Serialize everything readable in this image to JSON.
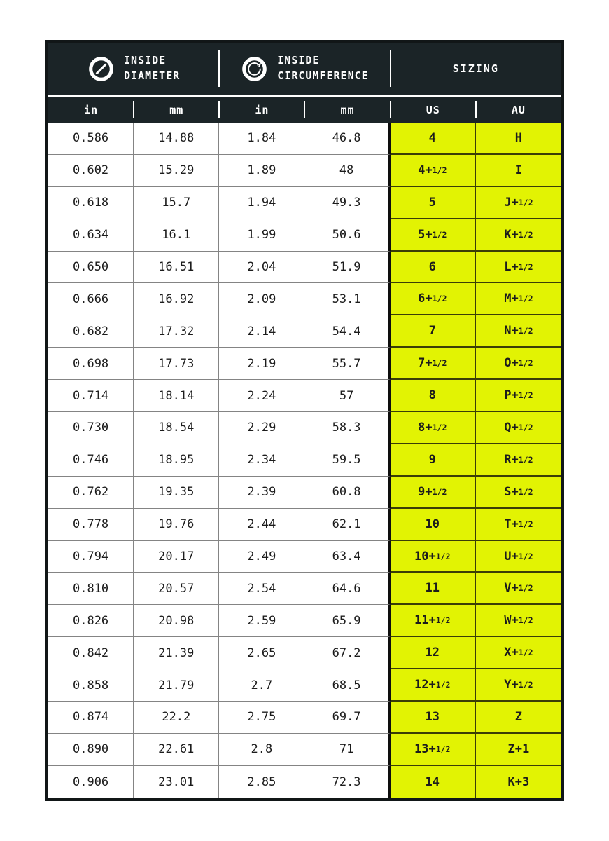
{
  "chart_data": {
    "type": "table",
    "groups": [
      {
        "icon": "diameter-icon",
        "lines": [
          "INSIDE",
          "DIAMETER"
        ]
      },
      {
        "icon": "circumference-icon",
        "lines": [
          "INSIDE",
          "CIRCUMFERENCE"
        ]
      },
      {
        "lines": [
          "SIZING"
        ]
      }
    ],
    "columns": [
      "in",
      "mm",
      "in",
      "mm",
      "US",
      "AU"
    ],
    "highlight_columns": [
      "US",
      "AU"
    ],
    "rows": [
      [
        "0.586",
        "14.88",
        "1.84",
        "46.8",
        "4",
        "H"
      ],
      [
        "0.602",
        "15.29",
        "1.89",
        "48",
        "4+1/2",
        "I"
      ],
      [
        "0.618",
        "15.7",
        "1.94",
        "49.3",
        "5",
        "J+1/2"
      ],
      [
        "0.634",
        "16.1",
        "1.99",
        "50.6",
        "5+1/2",
        "K+1/2"
      ],
      [
        "0.650",
        "16.51",
        "2.04",
        "51.9",
        "6",
        "L+1/2"
      ],
      [
        "0.666",
        "16.92",
        "2.09",
        "53.1",
        "6+1/2",
        "M+1/2"
      ],
      [
        "0.682",
        "17.32",
        "2.14",
        "54.4",
        "7",
        "N+1/2"
      ],
      [
        "0.698",
        "17.73",
        "2.19",
        "55.7",
        "7+1/2",
        "O+1/2"
      ],
      [
        "0.714",
        "18.14",
        "2.24",
        "57",
        "8",
        "P+1/2"
      ],
      [
        "0.730",
        "18.54",
        "2.29",
        "58.3",
        "8+1/2",
        "Q+1/2"
      ],
      [
        "0.746",
        "18.95",
        "2.34",
        "59.5",
        "9",
        "R+1/2"
      ],
      [
        "0.762",
        "19.35",
        "2.39",
        "60.8",
        "9+1/2",
        "S+1/2"
      ],
      [
        "0.778",
        "19.76",
        "2.44",
        "62.1",
        "10",
        "T+1/2"
      ],
      [
        "0.794",
        "20.17",
        "2.49",
        "63.4",
        "10+1/2",
        "U+1/2"
      ],
      [
        "0.810",
        "20.57",
        "2.54",
        "64.6",
        "11",
        "V+1/2"
      ],
      [
        "0.826",
        "20.98",
        "2.59",
        "65.9",
        "11+1/2",
        "W+1/2"
      ],
      [
        "0.842",
        "21.39",
        "2.65",
        "67.2",
        "12",
        "X+1/2"
      ],
      [
        "0.858",
        "21.79",
        "2.7",
        "68.5",
        "12+1/2",
        "Y+1/2"
      ],
      [
        "0.874",
        "22.2",
        "2.75",
        "69.7",
        "13",
        "Z"
      ],
      [
        "0.890",
        "22.61",
        "2.8",
        "71",
        "13+1/2",
        "Z+1"
      ],
      [
        "0.906",
        "23.01",
        "2.85",
        "72.3",
        "14",
        "K+3"
      ]
    ],
    "colors": {
      "header_bg": "#1b2427",
      "highlight": "#e2f303",
      "grid_gray": "#848484",
      "grid_dark_on_yellow": "#3a3e06",
      "outer_border": "#111617"
    }
  }
}
